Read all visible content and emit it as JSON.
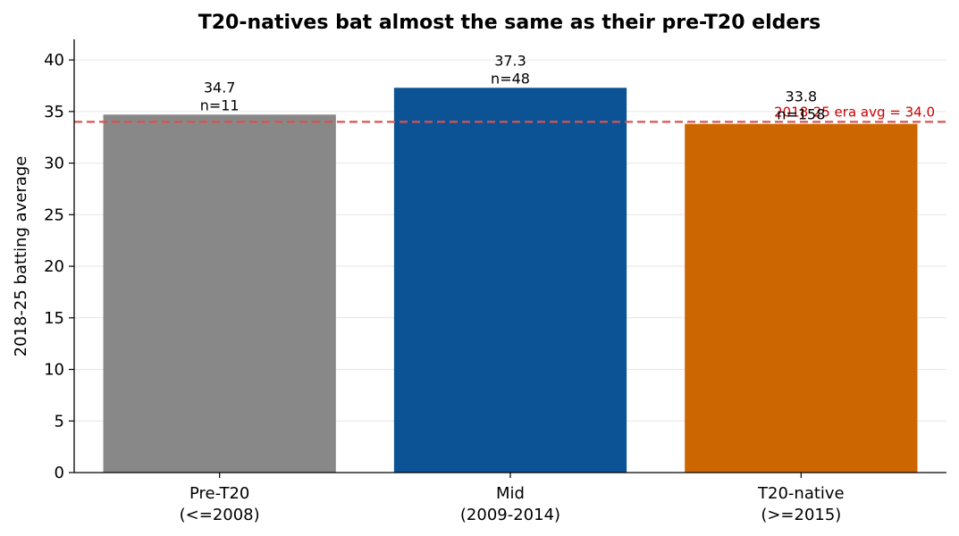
{
  "chart_data": {
    "type": "bar",
    "title": "T20-natives bat almost the same as their pre-T20 elders",
    "xlabel": "",
    "ylabel": "2018-25 batting average",
    "ylim": [
      0,
      42
    ],
    "yticks": [
      0,
      5,
      10,
      15,
      20,
      25,
      30,
      35,
      40
    ],
    "grid": "horizontal",
    "categories": [
      [
        "Pre-T20",
        "(<=2008)"
      ],
      [
        "Mid",
        "(2009-2014)"
      ],
      [
        "T20-native",
        "(>=2015)"
      ]
    ],
    "values": [
      34.7,
      37.3,
      33.8
    ],
    "value_labels": [
      "34.7",
      "37.3",
      "33.8"
    ],
    "counts": [
      "n=11",
      "n=48",
      "n=158"
    ],
    "colors": [
      "#888888",
      "#0b5394",
      "#cc6600"
    ],
    "reference_line": {
      "value": 34.0,
      "label": "2018-25 era avg = 34.0",
      "color": "#d9534f",
      "label_color": "#cc0000"
    }
  }
}
